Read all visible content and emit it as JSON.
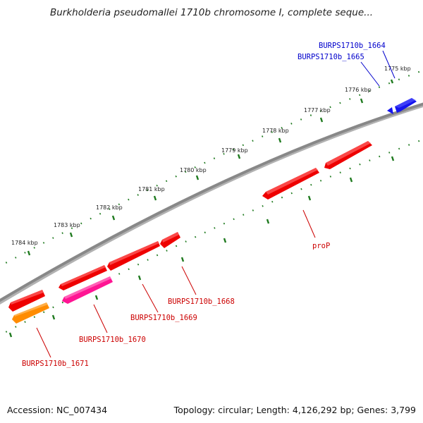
{
  "title": "Burkholderia pseudomallei 1710b chromosome I, complete seque...",
  "footer": {
    "accession": "Accession: NC_007434",
    "summary": "Topology: circular; Length: 4,126,292 bp; Genes: 3,799"
  },
  "colors": {
    "backbone": "#7a7a7a",
    "tick": "#1f7a1f",
    "red": "#ee0000",
    "magenta": "#ff1493",
    "orange": "#ff8c00",
    "blue": "#1414ee",
    "label_red": "#cc0000",
    "label_blue": "#0000cc"
  },
  "scale": {
    "labels": [
      "1775 kbp",
      "1776 kbp",
      "1777 kbp",
      "1778 kbp",
      "1779 kbp",
      "1780 kbp",
      "1781 kbp",
      "1782 kbp",
      "1783 kbp",
      "1784 kbp"
    ]
  },
  "genes": [
    {
      "name": "BURPS1710b_1664",
      "color": "blue",
      "strand": "+"
    },
    {
      "name": "BURPS1710b_1665",
      "color": "blue",
      "strand": "+"
    },
    {
      "name": "proP",
      "color": "red",
      "strand": "-"
    },
    {
      "name": "BURPS1710b_1668",
      "color": "red",
      "strand": "-"
    },
    {
      "name": "BURPS1710b_1669",
      "color": "red",
      "strand": "-"
    },
    {
      "name": "BURPS1710b_1670",
      "color": "magenta",
      "strand": "-"
    },
    {
      "name": "BURPS1710b_1671",
      "color": "orange",
      "strand": "-"
    }
  ]
}
